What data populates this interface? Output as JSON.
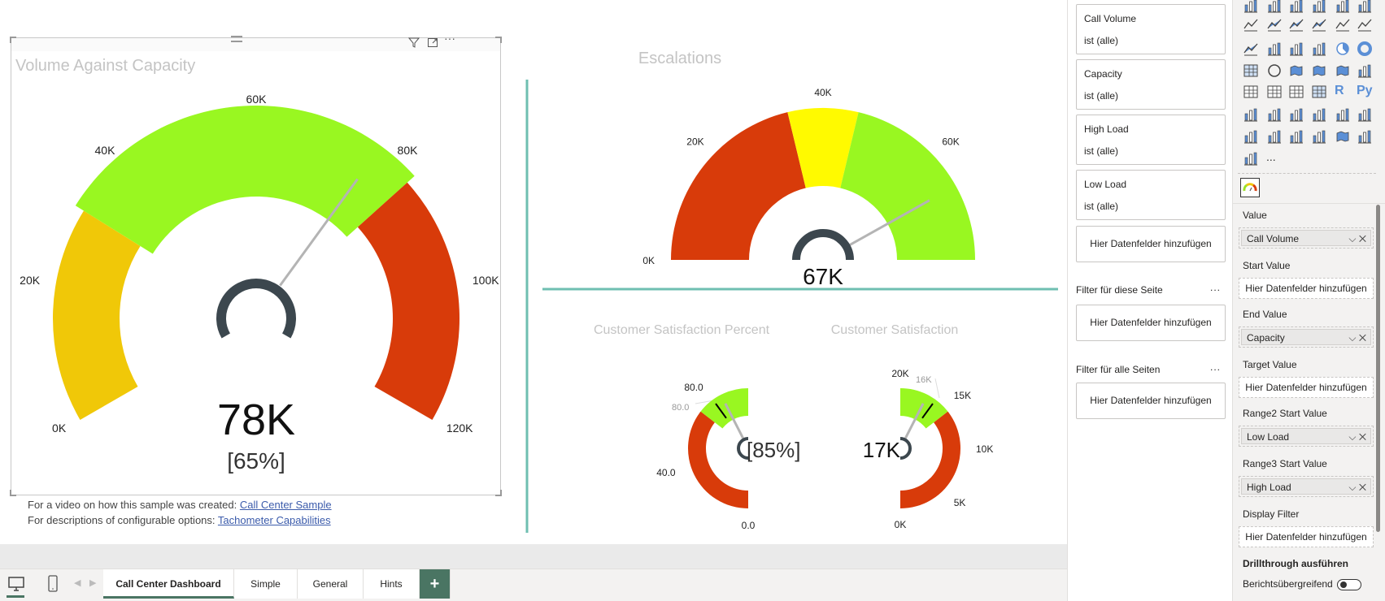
{
  "colors": {
    "green": "#99f721",
    "yellow_main": "#f0c808",
    "yellow": "#fffa00",
    "red": "#d83b0a",
    "hub": "#3c474e",
    "needle": "#b4b4b4",
    "accent": "#4a7563",
    "divider": "#6fbfb1"
  },
  "visual_header_icons": [
    "filter-icon",
    "focus-mode-icon",
    "more-options-icon"
  ],
  "main_visual": {
    "title": "Volume Against Capacity",
    "value_label": "78K",
    "percent_label": "[65%]"
  },
  "escalations": {
    "title": "Escalations",
    "value_label": "67K"
  },
  "csat_percent": {
    "title": "Customer Satisfaction Percent",
    "value_label": "[85%]",
    "target_label": "80.0"
  },
  "csat": {
    "title": "Customer Satisfaction",
    "value_label": "17K",
    "target_label": "16K"
  },
  "chart_data": [
    {
      "type": "gauge",
      "id": "main",
      "title": "Volume Against Capacity",
      "min": 0,
      "max": 120000,
      "value": 78000,
      "percent": 65,
      "ticks": [
        0,
        20000,
        40000,
        60000,
        80000,
        100000,
        120000
      ],
      "tick_labels": [
        "0K",
        "20K",
        "40K",
        "60K",
        "80K",
        "100K",
        "120K"
      ],
      "ranges": [
        {
          "from": 0,
          "to": 31000,
          "color": "#f0c808"
        },
        {
          "from": 31000,
          "to": 84000,
          "color": "#99f721"
        },
        {
          "from": 84000,
          "to": 120000,
          "color": "#d83b0a"
        }
      ]
    },
    {
      "type": "gauge",
      "id": "esc",
      "title": "Escalations",
      "min": 0,
      "max": 80000,
      "value": 67000,
      "ticks": [
        0,
        20000,
        40000,
        60000
      ],
      "tick_labels": [
        "0K",
        "20K",
        "40K",
        "60K"
      ],
      "ranges": [
        {
          "from": 0,
          "to": 34000,
          "color": "#d83b0a"
        },
        {
          "from": 34000,
          "to": 46000,
          "color": "#fffa00"
        },
        {
          "from": 46000,
          "to": 80000,
          "color": "#99f721"
        }
      ]
    },
    {
      "type": "gauge",
      "id": "csp",
      "title": "Customer Satisfaction Percent",
      "min": 0,
      "max": 100,
      "value": 85,
      "target": 80,
      "ticks": [
        0,
        40,
        80
      ],
      "tick_labels": [
        "0.0",
        "40.0",
        "80.0"
      ],
      "ranges": [
        {
          "from": 0,
          "to": 71,
          "color": "#d83b0a"
        },
        {
          "from": 71,
          "to": 100,
          "color": "#99f721"
        }
      ]
    },
    {
      "type": "gauge",
      "id": "cs",
      "title": "Customer Satisfaction",
      "min": 0,
      "max": 20000,
      "value": 17000,
      "target": 16000,
      "ticks": [
        0,
        5000,
        10000,
        15000,
        20000
      ],
      "tick_labels": [
        "0K",
        "5K",
        "10K",
        "15K",
        "20K"
      ],
      "ranges": [
        {
          "from": 0,
          "to": 14200,
          "color": "#d83b0a"
        },
        {
          "from": 14200,
          "to": 20000,
          "color": "#99f721"
        }
      ]
    }
  ],
  "links": {
    "line1_text": "For a video on how this sample was created: ",
    "line1_link": "Call Center Sample",
    "line2_text": "For descriptions of configurable options: ",
    "line2_link": "Tachometer Capabilities"
  },
  "tabs": [
    "Call Center Dashboard",
    "Simple",
    "General",
    "Hints"
  ],
  "add_tab": "+",
  "filters": {
    "visual_filters": [
      {
        "name": "Call Volume",
        "state": "ist (alle)"
      },
      {
        "name": "Capacity",
        "state": "ist (alle)"
      },
      {
        "name": "High Load",
        "state": "ist (alle)"
      },
      {
        "name": "Low Load",
        "state": "ist (alle)"
      }
    ],
    "add_fields": "Hier Datenfelder hinzufügen",
    "page_filters": "Filter für diese Seite",
    "all_pages_filters": "Filter für alle Seiten",
    "more": "..."
  },
  "visualizations": {
    "icons": [
      "stacked-bar-icon",
      "stacked-column-icon",
      "clustered-bar-icon",
      "clustered-column-icon",
      "100-bar-icon",
      "100-column-icon",
      "line-chart-icon",
      "area-chart-icon",
      "stacked-area-icon",
      "area-100-icon",
      "line-column-icon",
      "line-clustered-icon",
      "ribbon-chart-icon",
      "waterfall-icon",
      "funnel-icon",
      "scatter-icon",
      "pie-icon",
      "donut-icon",
      "treemap-icon",
      "globe-map-icon",
      "filled-map-icon",
      "shape-map-icon",
      "azure-map-icon",
      "gauge-icon",
      "kpi-icon",
      "slicer-icon",
      "table-icon",
      "matrix-icon",
      "r-visual-icon",
      "python-visual-icon",
      "key-influencers-icon",
      "decomposition-tree-icon",
      "qa-icon",
      "narrative-icon",
      "goals-icon",
      "paginated-report-icon",
      "power-apps-icon",
      "power-automate-icon",
      "filter-visual-icon",
      "image-icon",
      "arcgis-icon",
      "power-apps-visual-icon",
      "power-automate-arrow-icon",
      "more-visuals-icon"
    ],
    "r_label": "R",
    "py_label": "Py",
    "more_label": "...",
    "custom_icon": "tachometer-icon",
    "fields": [
      {
        "label": "Value",
        "value": "Call Volume"
      },
      {
        "label": "Start Value",
        "value": null
      },
      {
        "label": "End Value",
        "value": "Capacity"
      },
      {
        "label": "Target Value",
        "value": null
      },
      {
        "label": "Range2 Start Value",
        "value": "Low Load"
      },
      {
        "label": "Range3 Start Value",
        "value": "High Load"
      },
      {
        "label": "Display Filter",
        "value": null
      }
    ],
    "placeholder": "Hier Datenfelder hinzufügen",
    "pill_controls": "⌵ ✕",
    "drillthrough": "Drillthrough ausführen",
    "cross_report": "Berichtsübergreifend",
    "cross_report_on": false
  }
}
